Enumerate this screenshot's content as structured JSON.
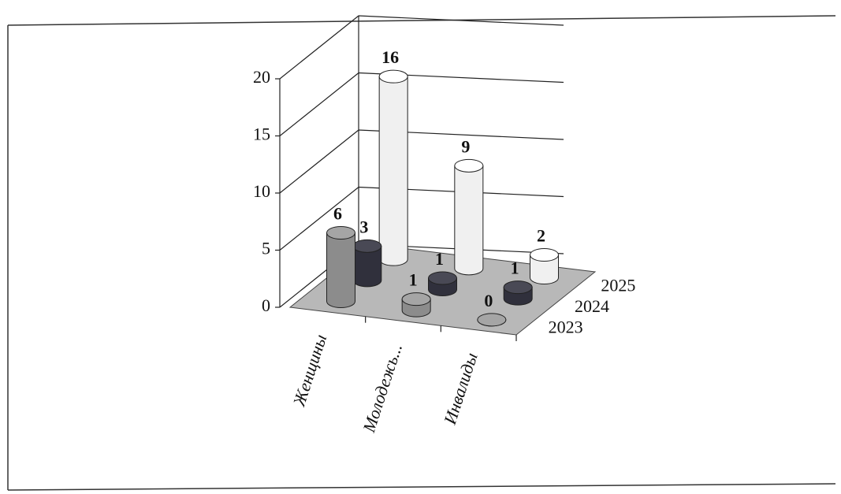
{
  "chart_data": {
    "type": "cylinder3d",
    "categories": [
      "Женщины",
      "Молодежь...",
      "Инвалиды"
    ],
    "series": [
      {
        "name": "2023",
        "color": "#8c8c8c",
        "values": [
          6,
          1,
          0
        ]
      },
      {
        "name": "2024",
        "color": "#30303c",
        "values": [
          3,
          1,
          1
        ]
      },
      {
        "name": "2025",
        "color": "#f0f0f0",
        "values": [
          16,
          9,
          2
        ]
      }
    ],
    "ylim": [
      0,
      20
    ],
    "yticks": [
      0,
      5,
      10,
      15,
      20
    ],
    "grid": true
  }
}
